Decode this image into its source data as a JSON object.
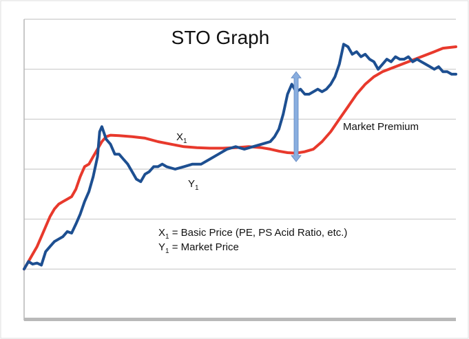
{
  "chart_data": {
    "type": "line",
    "title": "STO Graph",
    "xlabel": "",
    "ylabel": "",
    "xlim": [
      0,
      100
    ],
    "ylim": [
      0,
      6
    ],
    "grid": true,
    "series": [
      {
        "name": "X1",
        "color": "#e8392c",
        "points": [
          [
            0,
            1.0
          ],
          [
            1,
            1.15
          ],
          [
            2,
            1.3
          ],
          [
            3,
            1.45
          ],
          [
            4,
            1.65
          ],
          [
            5,
            1.85
          ],
          [
            6,
            2.05
          ],
          [
            7,
            2.2
          ],
          [
            8,
            2.3
          ],
          [
            9,
            2.35
          ],
          [
            10,
            2.4
          ],
          [
            11,
            2.45
          ],
          [
            12,
            2.6
          ],
          [
            13,
            2.85
          ],
          [
            14,
            3.05
          ],
          [
            15,
            3.1
          ],
          [
            16,
            3.25
          ],
          [
            17,
            3.4
          ],
          [
            18,
            3.55
          ],
          [
            19,
            3.65
          ],
          [
            20,
            3.68
          ],
          [
            22,
            3.67
          ],
          [
            25,
            3.65
          ],
          [
            28,
            3.62
          ],
          [
            31,
            3.55
          ],
          [
            34,
            3.5
          ],
          [
            37,
            3.45
          ],
          [
            40,
            3.43
          ],
          [
            43,
            3.42
          ],
          [
            46,
            3.42
          ],
          [
            49,
            3.43
          ],
          [
            52,
            3.45
          ],
          [
            55,
            3.43
          ],
          [
            57,
            3.4
          ],
          [
            59,
            3.36
          ],
          [
            61,
            3.33
          ],
          [
            63,
            3.32
          ],
          [
            65,
            3.35
          ],
          [
            67,
            3.4
          ],
          [
            69,
            3.55
          ],
          [
            71,
            3.75
          ],
          [
            73,
            4.0
          ],
          [
            75,
            4.25
          ],
          [
            77,
            4.5
          ],
          [
            79,
            4.7
          ],
          [
            81,
            4.85
          ],
          [
            83,
            4.95
          ],
          [
            86,
            5.05
          ],
          [
            89,
            5.15
          ],
          [
            92,
            5.25
          ],
          [
            95,
            5.35
          ],
          [
            97,
            5.42
          ],
          [
            100,
            5.45
          ]
        ]
      },
      {
        "name": "Y1",
        "color": "#1d4f91",
        "points": [
          [
            0,
            1.0
          ],
          [
            1,
            1.15
          ],
          [
            2,
            1.1
          ],
          [
            3,
            1.12
          ],
          [
            4,
            1.08
          ],
          [
            5,
            1.35
          ],
          [
            6,
            1.45
          ],
          [
            7,
            1.55
          ],
          [
            8,
            1.6
          ],
          [
            9,
            1.65
          ],
          [
            10,
            1.75
          ],
          [
            11,
            1.72
          ],
          [
            12,
            1.9
          ],
          [
            13,
            2.1
          ],
          [
            14,
            2.35
          ],
          [
            15,
            2.55
          ],
          [
            16,
            2.85
          ],
          [
            17,
            3.25
          ],
          [
            17.5,
            3.75
          ],
          [
            18,
            3.85
          ],
          [
            19,
            3.6
          ],
          [
            20,
            3.5
          ],
          [
            21,
            3.3
          ],
          [
            22,
            3.3
          ],
          [
            23,
            3.2
          ],
          [
            24,
            3.1
          ],
          [
            25,
            2.95
          ],
          [
            26,
            2.8
          ],
          [
            27,
            2.75
          ],
          [
            28,
            2.9
          ],
          [
            29,
            2.95
          ],
          [
            30,
            3.05
          ],
          [
            31,
            3.05
          ],
          [
            32,
            3.1
          ],
          [
            33,
            3.05
          ],
          [
            35,
            3.0
          ],
          [
            37,
            3.05
          ],
          [
            39,
            3.1
          ],
          [
            41,
            3.1
          ],
          [
            43,
            3.2
          ],
          [
            45,
            3.3
          ],
          [
            47,
            3.4
          ],
          [
            49,
            3.45
          ],
          [
            51,
            3.4
          ],
          [
            53,
            3.45
          ],
          [
            55,
            3.5
          ],
          [
            57,
            3.55
          ],
          [
            58,
            3.65
          ],
          [
            59,
            3.8
          ],
          [
            60,
            4.1
          ],
          [
            61,
            4.5
          ],
          [
            62,
            4.7
          ],
          [
            63,
            4.55
          ],
          [
            64,
            4.6
          ],
          [
            65,
            4.5
          ],
          [
            66,
            4.5
          ],
          [
            67,
            4.55
          ],
          [
            68,
            4.6
          ],
          [
            69,
            4.55
          ],
          [
            70,
            4.6
          ],
          [
            71,
            4.7
          ],
          [
            72,
            4.85
          ],
          [
            73,
            5.1
          ],
          [
            74,
            5.5
          ],
          [
            75,
            5.45
          ],
          [
            76,
            5.3
          ],
          [
            77,
            5.35
          ],
          [
            78,
            5.25
          ],
          [
            79,
            5.3
          ],
          [
            80,
            5.2
          ],
          [
            81,
            5.15
          ],
          [
            82,
            5.0
          ],
          [
            83,
            5.1
          ],
          [
            84,
            5.2
          ],
          [
            85,
            5.15
          ],
          [
            86,
            5.25
          ],
          [
            87,
            5.2
          ],
          [
            88,
            5.2
          ],
          [
            89,
            5.25
          ],
          [
            90,
            5.15
          ],
          [
            91,
            5.2
          ],
          [
            92,
            5.15
          ],
          [
            93,
            5.1
          ],
          [
            94,
            5.05
          ],
          [
            95,
            5.0
          ],
          [
            96,
            5.05
          ],
          [
            97,
            4.95
          ],
          [
            98,
            4.95
          ],
          [
            99,
            4.9
          ],
          [
            100,
            4.9
          ]
        ]
      }
    ],
    "annotations": {
      "x1_label": {
        "main": "X",
        "sub": "1"
      },
      "y1_label": {
        "main": "Y",
        "sub": "1"
      },
      "premium_label": "Market Premium",
      "legend_line1": {
        "main": "X",
        "sub": "1",
        "rest": " = Basic Price (PE, PS Acid Ratio, etc.)"
      },
      "legend_line2": {
        "main": "Y",
        "sub": "1",
        "rest": " = Market Price"
      },
      "arrow": {
        "x": 63,
        "y_top": 4.95,
        "y_bottom": 3.15,
        "color": "#89aedf"
      }
    }
  }
}
